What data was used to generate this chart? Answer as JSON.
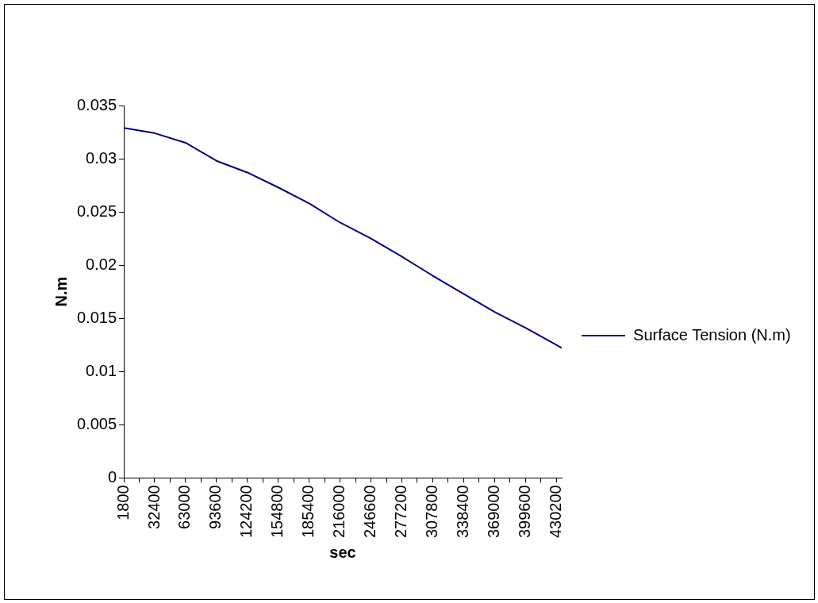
{
  "chart_data": {
    "type": "line",
    "xlabel": "sec",
    "ylabel": "N.m",
    "x": [
      1800,
      32400,
      63000,
      93600,
      124200,
      154800,
      185400,
      216000,
      246600,
      277200,
      307800,
      338400,
      369000,
      399600,
      430200,
      435600
    ],
    "series": [
      {
        "name": "Surface Tension (N.m)",
        "color": "#000080",
        "values": [
          0.0329,
          0.0324,
          0.0315,
          0.0298,
          0.0287,
          0.0273,
          0.0258,
          0.024,
          0.0225,
          0.0208,
          0.019,
          0.0173,
          0.0156,
          0.0141,
          0.0125,
          0.0122
        ]
      }
    ],
    "xlim": [
      1800,
      435600
    ],
    "xticks": [
      1800,
      {
        "value": 17100,
        "label": null
      },
      32400,
      {
        "value": 47700,
        "label": null
      },
      63000,
      {
        "value": 78300,
        "label": null
      },
      93600,
      {
        "value": 108900,
        "label": null
      },
      124200,
      {
        "value": 139500,
        "label": null
      },
      154800,
      {
        "value": 170100,
        "label": null
      },
      185400,
      {
        "value": 200700,
        "label": null
      },
      216000,
      {
        "value": 231300,
        "label": null
      },
      246600,
      {
        "value": 261900,
        "label": null
      },
      277200,
      {
        "value": 292500,
        "label": null
      },
      307800,
      {
        "value": 323100,
        "label": null
      },
      338400,
      {
        "value": 353700,
        "label": null
      },
      369000,
      {
        "value": 384300,
        "label": null
      },
      399600,
      {
        "value": 414900,
        "label": null
      },
      430200
    ],
    "ylim": [
      0,
      0.035
    ],
    "yticks": [
      0,
      0.005,
      0.01,
      0.015,
      0.02,
      0.025,
      0.03,
      0.035
    ],
    "grid": false,
    "legend": "right",
    "marker": "none",
    "line_style": "solid"
  }
}
